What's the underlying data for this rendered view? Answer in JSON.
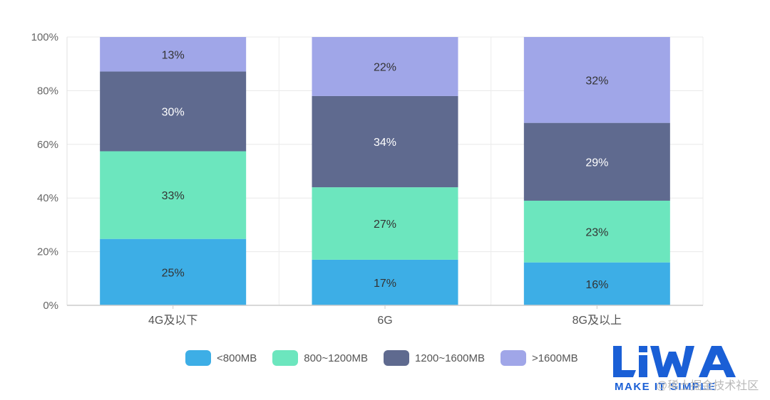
{
  "chart_data": {
    "type": "bar",
    "stacked": true,
    "categories": [
      "4G及以下",
      "6G",
      "8G及以上"
    ],
    "series": [
      {
        "name": "<800MB",
        "values": [
          25,
          17,
          16
        ],
        "color": "#3daee6",
        "label_color": "#333333"
      },
      {
        "name": "800~1200MB",
        "values": [
          33,
          27,
          23
        ],
        "color": "#6ce6be",
        "label_color": "#333333"
      },
      {
        "name": "1200~1600MB",
        "values": [
          30,
          34,
          29
        ],
        "color": "#5f6a8f",
        "label_color": "#ffffff"
      },
      {
        "name": ">1600MB",
        "values": [
          13,
          22,
          32
        ],
        "color": "#a0a6e8",
        "label_color": "#333333"
      }
    ],
    "data_labels": [
      [
        "25%",
        "17%",
        "16%"
      ],
      [
        "33%",
        "27%",
        "23%"
      ],
      [
        "30%",
        "34%",
        "29%"
      ],
      [
        "13%",
        "22%",
        "32%"
      ]
    ],
    "y_ticks": [
      "0%",
      "20%",
      "40%",
      "60%",
      "80%",
      "100%"
    ],
    "ylim": [
      0,
      100
    ],
    "title": "",
    "xlabel": "",
    "ylabel": "",
    "grid": true,
    "legend_position": "bottom"
  },
  "logo": {
    "name": "LiWA",
    "tagline": "MAKE IT SIMPLE",
    "color": "#1a5fd6"
  },
  "watermark": "@稀土掘金技术社区"
}
